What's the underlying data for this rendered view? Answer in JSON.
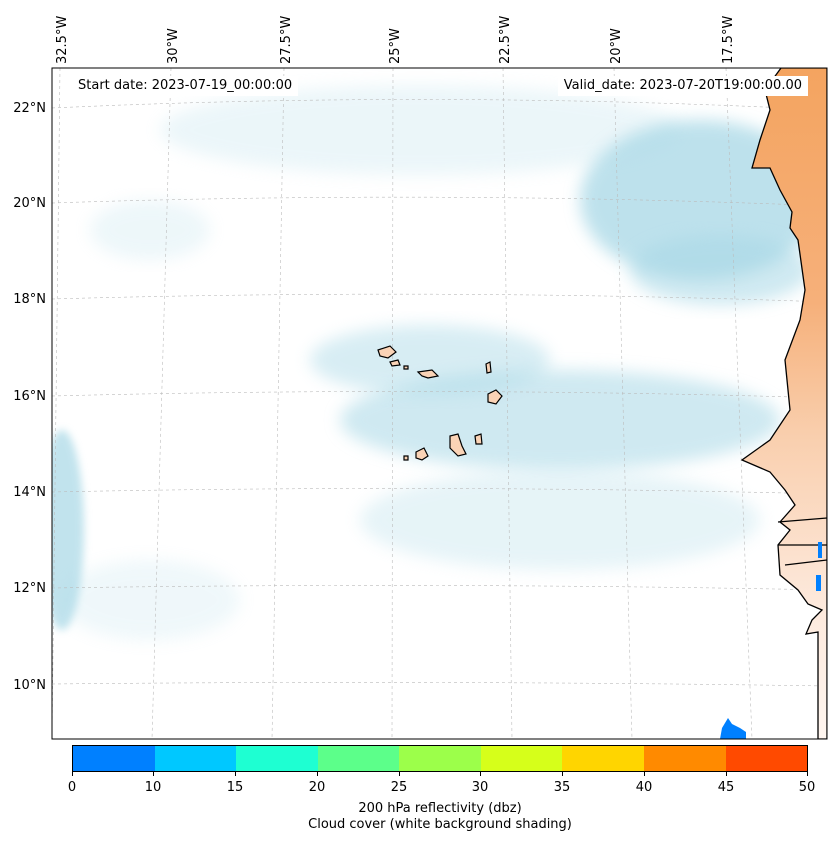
{
  "header": {
    "start_date": "Start date: 2023-07-19_00:00:00",
    "valid_date": "Valid_date: 2023-07-20T19:00:00.00"
  },
  "axes": {
    "longitude_labels": [
      "32.5°W",
      "30°W",
      "27.5°W",
      "25°W",
      "22.5°W",
      "20°W",
      "17.5°W"
    ],
    "latitude_labels": [
      "22°N",
      "20°N",
      "18°N",
      "16°N",
      "14°N",
      "12°N",
      "10°N"
    ]
  },
  "colorbar": {
    "ticks": [
      "0",
      "10",
      "15",
      "20",
      "25",
      "30",
      "35",
      "40",
      "45",
      "50"
    ],
    "colors": [
      "#0080ff",
      "#00c8ff",
      "#1effd2",
      "#5cff8a",
      "#9cff4a",
      "#d6ff1a",
      "#ffd500",
      "#ff8a00",
      "#ff4a00"
    ],
    "title": "200 hPa reflectivity (dbz)",
    "subtitle": "Cloud cover (white background shading)"
  },
  "map": {
    "land_color": "#f4a460",
    "cloud_color": "#a8d8e6",
    "ocean_color": "#ffffff",
    "echo_color": "#0080ff"
  }
}
